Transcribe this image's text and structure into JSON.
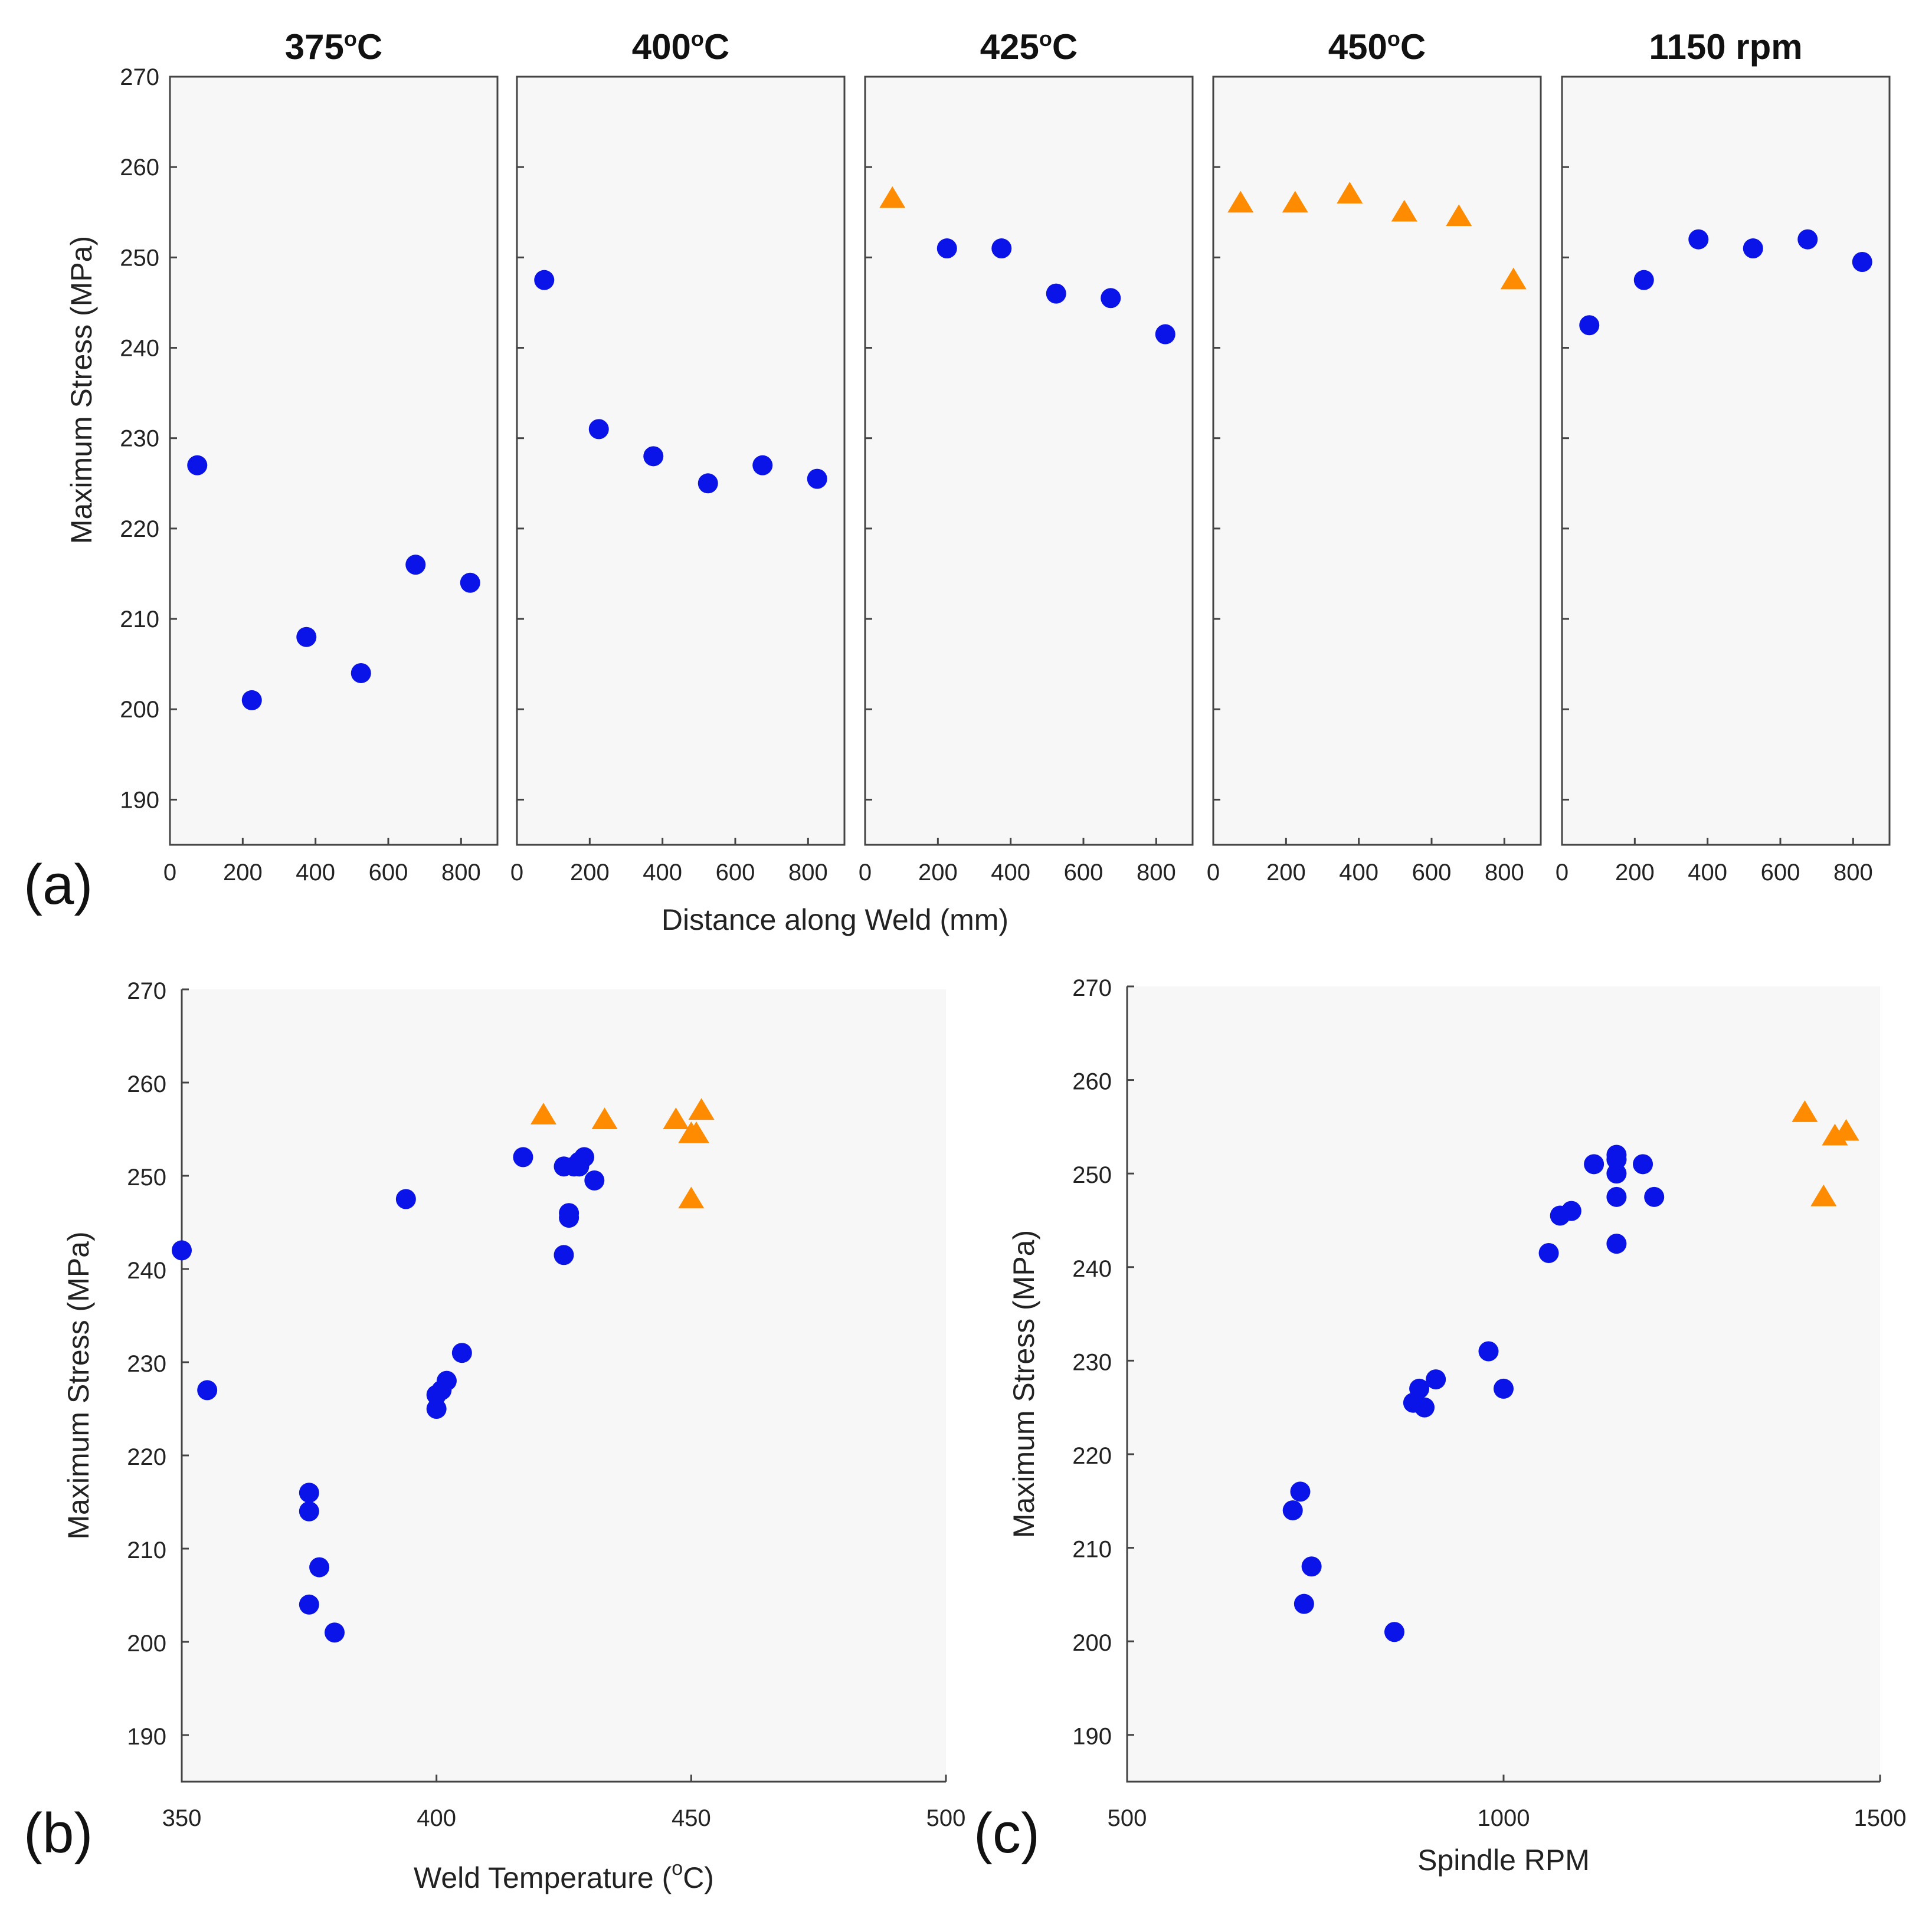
{
  "colors": {
    "circle": "#0a14e8",
    "triangle": "#ff8c00",
    "panel_bg": "#f7f7f7",
    "axis": "#444444"
  },
  "chart_data": [
    {
      "id": "a",
      "panel_label": "(a)",
      "type": "scatter",
      "xlabel": "Distance along Weld (mm)",
      "ylabel": "Maximum Stress (MPa)",
      "ylim": [
        185,
        270
      ],
      "yticks": [
        190,
        200,
        210,
        220,
        230,
        240,
        250,
        260,
        270
      ],
      "xlim": [
        0,
        900
      ],
      "xticks": [
        0,
        200,
        400,
        600,
        800
      ],
      "subplots": [
        {
          "title": "375°C",
          "title_main": "375",
          "title_unit": "C",
          "title_sup": "o",
          "series": [
            {
              "name": "circles",
              "marker": "circle",
              "x": [
                75,
                225,
                375,
                525,
                675,
                825
              ],
              "y": [
                227,
                201,
                208,
                204,
                216,
                214
              ]
            }
          ]
        },
        {
          "title": "400°C",
          "title_main": "400",
          "title_unit": "C",
          "title_sup": "o",
          "series": [
            {
              "name": "circles",
              "marker": "circle",
              "x": [
                75,
                225,
                375,
                525,
                675,
                825
              ],
              "y": [
                247.5,
                231,
                228,
                225,
                227,
                225.5
              ]
            }
          ]
        },
        {
          "title": "425°C",
          "title_main": "425",
          "title_unit": "C",
          "title_sup": "o",
          "series": [
            {
              "name": "circles",
              "marker": "circle",
              "x": [
                225,
                375,
                525,
                675,
                825
              ],
              "y": [
                251,
                251,
                246,
                245.5,
                241.5
              ]
            },
            {
              "name": "triangles",
              "marker": "triangle",
              "x": [
                75
              ],
              "y": [
                256.5
              ]
            }
          ]
        },
        {
          "title": "450°C",
          "title_main": "450",
          "title_unit": "C",
          "title_sup": "o",
          "series": [
            {
              "name": "triangles",
              "marker": "triangle",
              "x": [
                75,
                225,
                375,
                525,
                675,
                825
              ],
              "y": [
                256,
                256,
                257,
                255,
                254.5,
                247.5
              ]
            }
          ]
        },
        {
          "title": "1150 rpm",
          "title_main": "1150 rpm",
          "title_unit": "",
          "title_sup": "",
          "series": [
            {
              "name": "circles",
              "marker": "circle",
              "x": [
                75,
                225,
                375,
                525,
                675,
                825
              ],
              "y": [
                242.5,
                247.5,
                252,
                251,
                252,
                249.5
              ]
            }
          ]
        }
      ]
    },
    {
      "id": "b",
      "panel_label": "(b)",
      "type": "scatter",
      "xlabel": "Weld Temperature (°C)",
      "xlabel_pre": "Weld Temperature (",
      "xlabel_sup": "o",
      "xlabel_post": "C)",
      "ylabel": "Maximum Stress (MPa)",
      "xlim": [
        350,
        500
      ],
      "xticks": [
        350,
        400,
        450,
        500
      ],
      "ylim": [
        185,
        270
      ],
      "yticks": [
        190,
        200,
        210,
        220,
        230,
        240,
        250,
        260,
        270
      ],
      "series": [
        {
          "name": "circles",
          "marker": "circle",
          "x": [
            350,
            355,
            375,
            375,
            375,
            377,
            380,
            394,
            400,
            400,
            401,
            402,
            405,
            417,
            425,
            425,
            426,
            426,
            427,
            428,
            428,
            429,
            431
          ],
          "y": [
            242,
            227,
            216,
            214,
            204,
            208,
            201,
            247.5,
            225,
            226.5,
            227,
            228,
            231,
            252,
            251,
            241.5,
            245.5,
            246,
            251,
            251,
            251.5,
            252,
            249.5
          ]
        },
        {
          "name": "triangles",
          "marker": "triangle",
          "x": [
            421,
            433,
            447,
            450,
            451,
            452,
            450
          ],
          "y": [
            256.5,
            256,
            256,
            254.5,
            254.5,
            257,
            247.5
          ]
        }
      ]
    },
    {
      "id": "c",
      "panel_label": "(c)",
      "type": "scatter",
      "xlabel": "Spindle RPM",
      "ylabel": "Maximum Stress (MPa)",
      "xlim": [
        500,
        1500
      ],
      "xticks": [
        500,
        1000,
        1500
      ],
      "ylim": [
        185,
        270
      ],
      "yticks": [
        190,
        200,
        210,
        220,
        230,
        240,
        250,
        260,
        270
      ],
      "series": [
        {
          "name": "circles",
          "marker": "circle",
          "x": [
            720,
            730,
            735,
            745,
            855,
            880,
            888,
            895,
            910,
            980,
            1000,
            1060,
            1075,
            1090,
            1120,
            1150,
            1150,
            1150,
            1150,
            1150,
            1150,
            1185,
            1200
          ],
          "y": [
            214,
            216,
            204,
            208,
            201,
            225.5,
            227,
            225,
            228,
            231,
            227,
            241.5,
            245.5,
            246,
            251,
            251.5,
            252,
            250,
            247.5,
            242.5,
            251.5,
            251,
            247.5
          ]
        },
        {
          "name": "triangles",
          "marker": "triangle",
          "x": [
            1400,
            1425,
            1440,
            1455
          ],
          "y": [
            256.5,
            247.5,
            254,
            254.5
          ]
        }
      ]
    }
  ]
}
